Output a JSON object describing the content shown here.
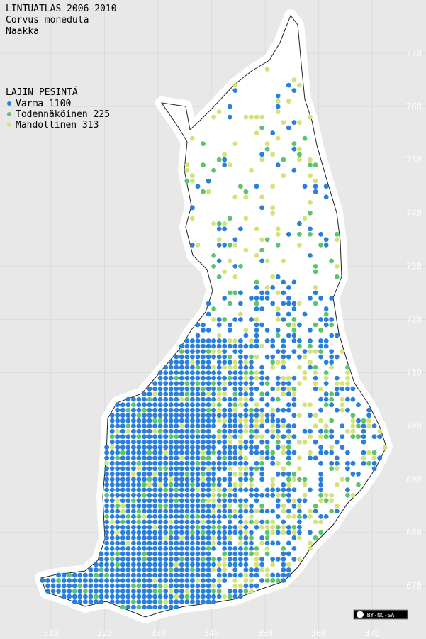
{
  "header": {
    "title": "LINTUATLAS 2006-2010",
    "species_latin": "Corvus monedula",
    "species_finnish": "Naakka"
  },
  "legend": {
    "title": "LAJIN PESINTÄ",
    "entries": [
      {
        "label": "Varma 1100",
        "color": "#2a7fdc"
      },
      {
        "label": "Todennäköinen 225",
        "color": "#5cc46a"
      },
      {
        "label": "Mahdollinen 313",
        "color": "#d4e27a"
      }
    ]
  },
  "axes": {
    "x_ticks": [
      310,
      320,
      330,
      340,
      350,
      360,
      370
    ],
    "y_ticks": [
      770,
      760,
      750,
      740,
      730,
      720,
      710,
      700,
      690,
      680,
      670
    ]
  },
  "badge": "BY-NC-SA"
}
